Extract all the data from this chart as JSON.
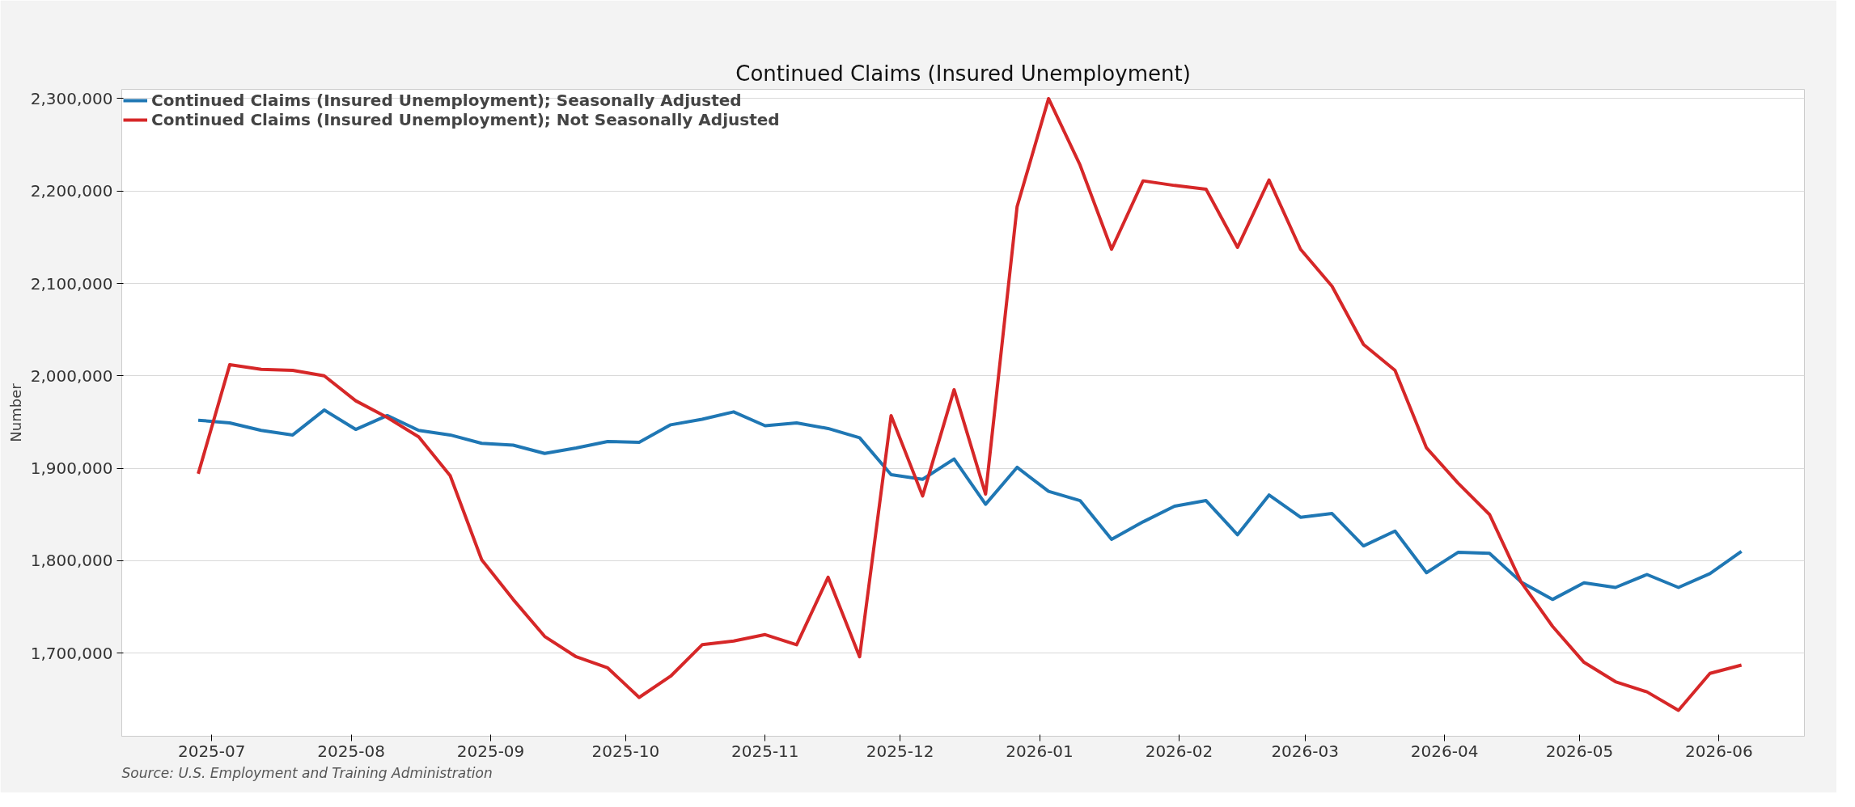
{
  "chart_data": {
    "type": "line",
    "title": "Continued Claims (Insured Unemployment)",
    "ylabel": "Number",
    "annotations": [
      "Source: U.S. Employment and Training Administration"
    ],
    "x": [
      "2025-06-28",
      "2025-07-05",
      "2025-07-12",
      "2025-07-19",
      "2025-07-26",
      "2025-08-02",
      "2025-08-09",
      "2025-08-16",
      "2025-08-23",
      "2025-08-30",
      "2025-09-06",
      "2025-09-13",
      "2025-09-20",
      "2025-09-27",
      "2025-10-04",
      "2025-10-11",
      "2025-10-18",
      "2025-10-25",
      "2025-11-01",
      "2025-11-08",
      "2025-11-15",
      "2025-11-22",
      "2025-11-29",
      "2025-12-06",
      "2025-12-13",
      "2025-12-20",
      "2025-12-27",
      "2026-01-03",
      "2026-01-10",
      "2026-01-17",
      "2026-01-24",
      "2026-01-31",
      "2026-02-07",
      "2026-02-14",
      "2026-02-21",
      "2026-02-28",
      "2026-03-07",
      "2026-03-14",
      "2026-03-21",
      "2026-03-28",
      "2026-04-04",
      "2026-04-11",
      "2026-04-18",
      "2026-04-25",
      "2026-05-02",
      "2026-05-09",
      "2026-05-16",
      "2026-05-23",
      "2026-05-30",
      "2026-06-06"
    ],
    "series": [
      {
        "name": "Continued Claims (Insured Unemployment); Seasonally Adjusted",
        "color": "#1f77b4",
        "values": [
          1952000,
          1949000,
          1941000,
          1936000,
          1963000,
          1942000,
          1957000,
          1941000,
          1936000,
          1927000,
          1925000,
          1916000,
          1922000,
          1929000,
          1928000,
          1947000,
          1953000,
          1961000,
          1946000,
          1949000,
          1943000,
          1933000,
          1893000,
          1888000,
          1910000,
          1861000,
          1901000,
          1875000,
          1865000,
          1823000,
          1842000,
          1859000,
          1865000,
          1828000,
          1871000,
          1847000,
          1851000,
          1816000,
          1832000,
          1787000,
          1809000,
          1808000,
          1777000,
          1758000,
          1776000,
          1771000,
          1785000,
          1771000,
          1786000,
          1810000
        ]
      },
      {
        "name": "Continued Claims (Insured Unemployment); Not Seasonally Adjusted",
        "color": "#d62728",
        "values": [
          1894000,
          2012000,
          2007000,
          2006000,
          2000000,
          1973000,
          1955000,
          1934000,
          1892000,
          1801000,
          1758000,
          1718000,
          1696000,
          1684000,
          1652000,
          1675000,
          1709000,
          1713000,
          1720000,
          1709000,
          1782000,
          1696000,
          1957000,
          1870000,
          1985000,
          1872000,
          2183000,
          2300000,
          2228000,
          2137000,
          2211000,
          2206000,
          2202000,
          2139000,
          2212000,
          2137000,
          2097000,
          2034000,
          2006000,
          1922000,
          1884000,
          1850000,
          1777000,
          1729000,
          1690000,
          1669000,
          1658000,
          1638000,
          1678000,
          1687000
        ]
      }
    ],
    "xlim": [
      "2025-06-11",
      "2026-06-20"
    ],
    "xticks": [
      {
        "value": "2025-07-01",
        "label": "2025-07"
      },
      {
        "value": "2025-08-01",
        "label": "2025-08"
      },
      {
        "value": "2025-09-01",
        "label": "2025-09"
      },
      {
        "value": "2025-10-01",
        "label": "2025-10"
      },
      {
        "value": "2025-11-01",
        "label": "2025-11"
      },
      {
        "value": "2025-12-01",
        "label": "2025-12"
      },
      {
        "value": "2026-01-01",
        "label": "2026-01"
      },
      {
        "value": "2026-02-01",
        "label": "2026-02"
      },
      {
        "value": "2026-03-01",
        "label": "2026-03"
      },
      {
        "value": "2026-04-01",
        "label": "2026-04"
      },
      {
        "value": "2026-05-01",
        "label": "2026-05"
      },
      {
        "value": "2026-06-01",
        "label": "2026-06"
      }
    ],
    "ylim": [
      1610000,
      2310000
    ],
    "yticks": [
      {
        "value": 1700000,
        "label": "1,700,000"
      },
      {
        "value": 1800000,
        "label": "1,800,000"
      },
      {
        "value": 1900000,
        "label": "1,900,000"
      },
      {
        "value": 2000000,
        "label": "2,000,000"
      },
      {
        "value": 2100000,
        "label": "2,100,000"
      },
      {
        "value": 2200000,
        "label": "2,200,000"
      },
      {
        "value": 2300000,
        "label": "2,300,000"
      }
    ],
    "grid": "y",
    "legend": "top left",
    "marker": "none",
    "line_style": "solid"
  }
}
